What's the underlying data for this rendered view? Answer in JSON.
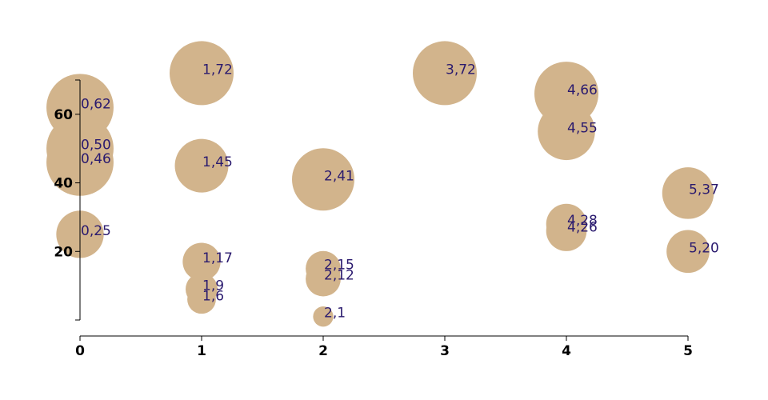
{
  "chart_data": {
    "type": "scatter",
    "title": "",
    "xlabel": "",
    "ylabel": "",
    "xlim": [
      0,
      5
    ],
    "ylim": [
      0,
      70
    ],
    "x_ticks": [
      0,
      1,
      2,
      3,
      4,
      5
    ],
    "y_ticks": [
      20,
      40,
      60
    ],
    "grid": false,
    "bubble_color": "#d2b48c",
    "label_color": "#2a1a6e",
    "points": [
      {
        "x": 0,
        "y": 62,
        "size": 1.1,
        "label": "0,62"
      },
      {
        "x": 0,
        "y": 50,
        "size": 1.1,
        "label": "0,50"
      },
      {
        "x": 0,
        "y": 46,
        "size": 1.1,
        "label": "0,46"
      },
      {
        "x": 0,
        "y": 25,
        "size": 0.55,
        "label": "0,25"
      },
      {
        "x": 1,
        "y": 72,
        "size": 1.0,
        "label": "1,72"
      },
      {
        "x": 1,
        "y": 45,
        "size": 0.7,
        "label": "1,45"
      },
      {
        "x": 1,
        "y": 17,
        "size": 0.35,
        "label": "1,17"
      },
      {
        "x": 1,
        "y": 9,
        "size": 0.25,
        "label": "1,9"
      },
      {
        "x": 1,
        "y": 6,
        "size": 0.2,
        "label": "1,6"
      },
      {
        "x": 2,
        "y": 41,
        "size": 0.95,
        "label": "2,41"
      },
      {
        "x": 2,
        "y": 15,
        "size": 0.3,
        "label": "2,15"
      },
      {
        "x": 2,
        "y": 12,
        "size": 0.3,
        "label": "2,12"
      },
      {
        "x": 2,
        "y": 1,
        "size": 0.1,
        "label": "2,1"
      },
      {
        "x": 3,
        "y": 72,
        "size": 1.0,
        "label": "3,72"
      },
      {
        "x": 4,
        "y": 66,
        "size": 1.0,
        "label": "4,66"
      },
      {
        "x": 4,
        "y": 55,
        "size": 0.8,
        "label": "4,55"
      },
      {
        "x": 4,
        "y": 28,
        "size": 0.4,
        "label": "4,28"
      },
      {
        "x": 4,
        "y": 26,
        "size": 0.4,
        "label": "4,26"
      },
      {
        "x": 5,
        "y": 37,
        "size": 0.65,
        "label": "5,37"
      },
      {
        "x": 5,
        "y": 20,
        "size": 0.45,
        "label": "5,20"
      }
    ]
  }
}
